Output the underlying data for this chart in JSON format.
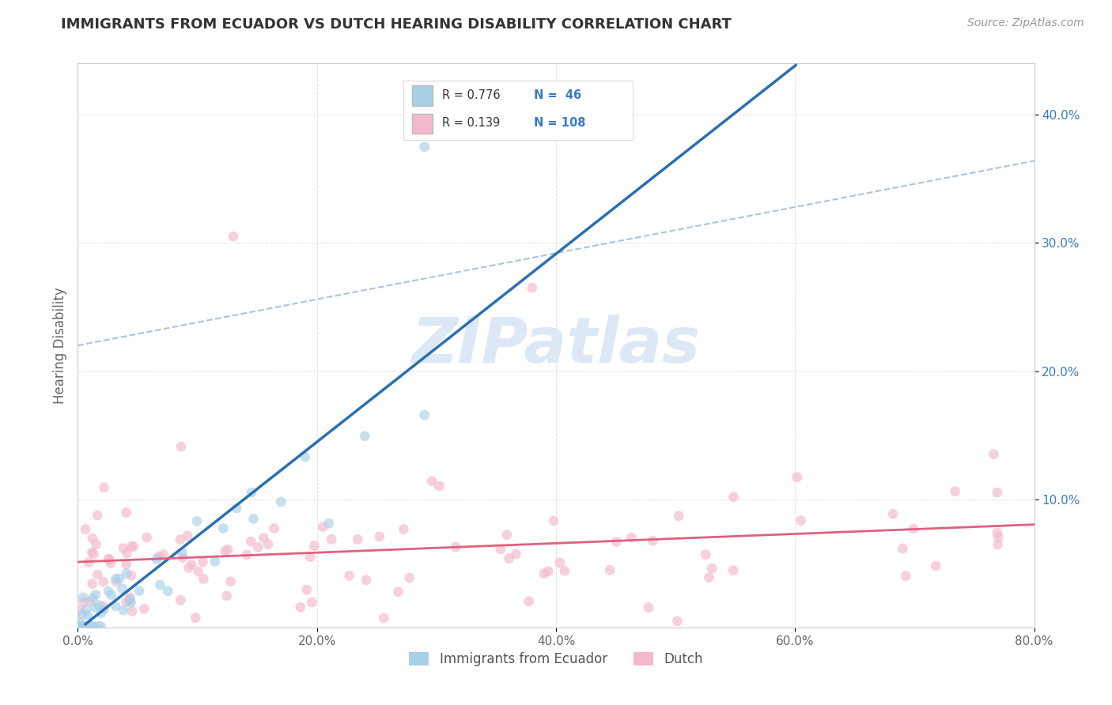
{
  "title": "IMMIGRANTS FROM ECUADOR VS DUTCH HEARING DISABILITY CORRELATION CHART",
  "source": "Source: ZipAtlas.com",
  "ylabel": "Hearing Disability",
  "xlim": [
    0.0,
    0.8
  ],
  "ylim": [
    0.0,
    0.44
  ],
  "xtick_labels": [
    "0.0%",
    "20.0%",
    "40.0%",
    "60.0%",
    "80.0%"
  ],
  "xtick_positions": [
    0.0,
    0.2,
    0.4,
    0.6,
    0.8
  ],
  "ytick_labels": [
    "10.0%",
    "20.0%",
    "30.0%",
    "40.0%"
  ],
  "ytick_positions": [
    0.1,
    0.2,
    0.3,
    0.4
  ],
  "color_blue_scatter": "#a8d0e8",
  "color_pink_scatter": "#f4b8cc",
  "trendline_blue": "#2c6fad",
  "trendline_pink": "#e06080",
  "trendline_gray": "#a0b8d8",
  "watermark_color": "#dce8f5",
  "background_color": "#ffffff",
  "grid_color": "#cccccc",
  "legend_box_color": "#f8f8f8",
  "text_dark": "#333333",
  "text_blue": "#3a7bbf"
}
